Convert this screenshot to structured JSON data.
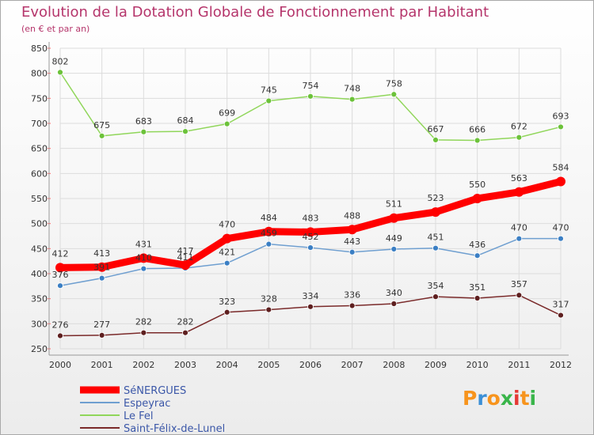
{
  "title": "Evolution de la Dotation Globale de Fonctionnement par Habitant",
  "subtitle": "(en € et par an)",
  "logo": {
    "letters": [
      "P",
      "r",
      "o",
      "x",
      "i",
      "t",
      "i"
    ],
    "colors": [
      "#f7941d",
      "#3b8fd6",
      "#f7941d",
      "#39b54a",
      "#e53935",
      "#f7941d",
      "#39b54a"
    ]
  },
  "chart_data": {
    "type": "line",
    "title": "Evolution de la Dotation Globale de Fonctionnement par Habitant",
    "subtitle": "(en € et par an)",
    "xlabel": "",
    "ylabel": "",
    "x": [
      "2000",
      "2001",
      "2002",
      "2003",
      "2004",
      "2005",
      "2006",
      "2007",
      "2008",
      "2009",
      "2010",
      "2011",
      "2012"
    ],
    "ylim": [
      250,
      850
    ],
    "yticks": [
      250,
      300,
      350,
      400,
      450,
      500,
      550,
      600,
      650,
      700,
      750,
      800,
      850
    ],
    "grid": true,
    "legend": "bottom-left",
    "series": [
      {
        "name": "SéNERGUES",
        "color": "#ff0000",
        "emphasis": true,
        "values": [
          412,
          413,
          431,
          417,
          470,
          484,
          483,
          488,
          511,
          523,
          550,
          563,
          584
        ],
        "labels": [
          "412",
          "413",
          "431",
          "417",
          "470",
          "484",
          "483",
          "488",
          "511",
          "523",
          "550",
          "563",
          "584"
        ]
      },
      {
        "name": "Espeyrac",
        "color": "#6f9fd0",
        "point_color": "#3b7fc4",
        "emphasis": false,
        "values": [
          376,
          391,
          410,
          411,
          421,
          459,
          452,
          443,
          449,
          451,
          436,
          470,
          470
        ],
        "labels": [
          "376",
          "391",
          "410",
          "411",
          "421",
          "459",
          "452",
          "443",
          "449",
          "451",
          "436",
          "470",
          "470"
        ]
      },
      {
        "name": "Le Fel",
        "color": "#90d65a",
        "point_color": "#6cc23a",
        "emphasis": false,
        "values": [
          802,
          675,
          683,
          684,
          699,
          745,
          754,
          748,
          758,
          667,
          666,
          672,
          693
        ],
        "labels": [
          "802",
          "675",
          "683",
          "684",
          "699",
          "745",
          "754",
          "748",
          "758",
          "667",
          "666",
          "672",
          "693"
        ]
      },
      {
        "name": "Saint-Félix-de-Lunel",
        "color": "#7a2a2a",
        "point_color": "#5e1f1f",
        "emphasis": false,
        "values": [
          276,
          277,
          282,
          282,
          323,
          328,
          334,
          336,
          340,
          354,
          351,
          357,
          317
        ],
        "labels": [
          "276",
          "277",
          "282",
          "282",
          "323",
          "328",
          "334",
          "336",
          "340",
          "354",
          "351",
          "357",
          "317"
        ]
      }
    ]
  }
}
